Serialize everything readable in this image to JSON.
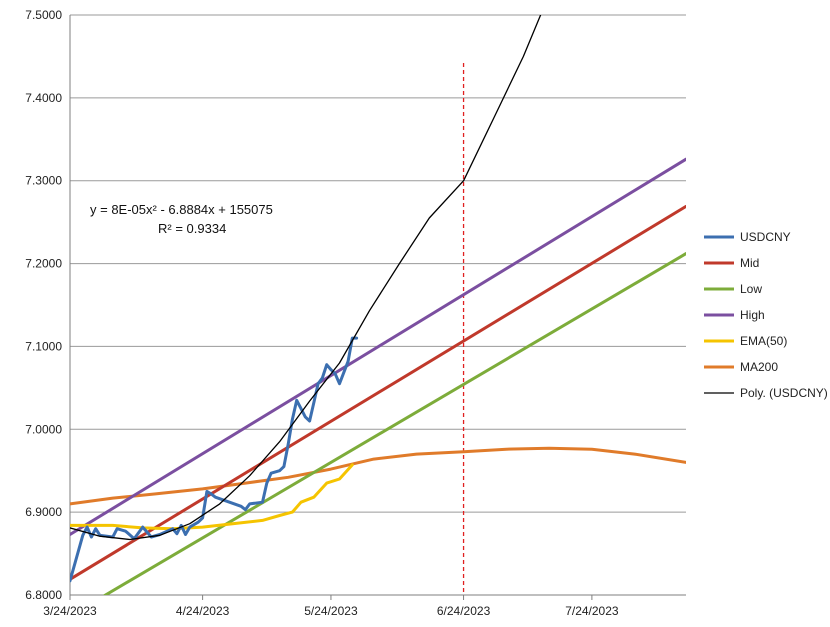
{
  "chart_data": {
    "type": "line",
    "title": "",
    "xlabel": "",
    "ylabel": "",
    "x_domain": [
      "2023-03-24",
      "2023-08-15"
    ],
    "ylim": [
      6.8,
      7.5
    ],
    "y_ticks": [
      6.8,
      6.9,
      7.0,
      7.1,
      7.2,
      7.3,
      7.4,
      7.5
    ],
    "y_tick_labels": [
      "6.8000",
      "6.9000",
      "7.0000",
      "7.1000",
      "7.2000",
      "7.3000",
      "7.4000",
      "7.5000"
    ],
    "x_ticks": [
      "2023-03-24",
      "2023-04-24",
      "2023-05-24",
      "2023-06-24",
      "2023-07-24"
    ],
    "x_tick_labels": [
      "3/24/2023",
      "4/24/2023",
      "5/24/2023",
      "6/24/2023",
      "7/24/2023"
    ],
    "grid": "horizontal",
    "legend_position": "right",
    "vline": {
      "x": "2023-06-24",
      "color": "#e02020",
      "style": "dashed"
    },
    "annotation": {
      "equation": "y = 8E-05x² - 6.8884x + 155075",
      "r_squared": "R² = 0.9334"
    },
    "series": [
      {
        "name": "USDCNY",
        "color": "#3c6fb0",
        "width": 3,
        "points": [
          [
            "2023-03-24",
            6.817
          ],
          [
            "2023-03-27",
            6.872
          ],
          [
            "2023-03-28",
            6.882
          ],
          [
            "2023-03-29",
            6.87
          ],
          [
            "2023-03-30",
            6.88
          ],
          [
            "2023-03-31",
            6.872
          ],
          [
            "2023-04-03",
            6.87
          ],
          [
            "2023-04-04",
            6.88
          ],
          [
            "2023-04-06",
            6.877
          ],
          [
            "2023-04-08",
            6.868
          ],
          [
            "2023-04-10",
            6.882
          ],
          [
            "2023-04-12",
            6.87
          ],
          [
            "2023-04-14",
            6.873
          ],
          [
            "2023-04-17",
            6.88
          ],
          [
            "2023-04-18",
            6.874
          ],
          [
            "2023-04-19",
            6.884
          ],
          [
            "2023-04-20",
            6.873
          ],
          [
            "2023-04-21",
            6.882
          ],
          [
            "2023-04-23",
            6.888
          ],
          [
            "2023-04-24",
            6.893
          ],
          [
            "2023-04-25",
            6.925
          ],
          [
            "2023-04-26",
            6.922
          ],
          [
            "2023-04-27",
            6.918
          ],
          [
            "2023-05-03",
            6.907
          ],
          [
            "2023-05-04",
            6.903
          ],
          [
            "2023-05-05",
            6.91
          ],
          [
            "2023-05-08",
            6.912
          ],
          [
            "2023-05-09",
            6.935
          ],
          [
            "2023-05-10",
            6.947
          ],
          [
            "2023-05-12",
            6.95
          ],
          [
            "2023-05-13",
            6.955
          ],
          [
            "2023-05-14",
            6.982
          ],
          [
            "2023-05-15",
            7.012
          ],
          [
            "2023-05-16",
            7.035
          ],
          [
            "2023-05-17",
            7.025
          ],
          [
            "2023-05-18",
            7.015
          ],
          [
            "2023-05-19",
            7.01
          ],
          [
            "2023-05-20",
            7.032
          ],
          [
            "2023-05-21",
            7.055
          ],
          [
            "2023-05-22",
            7.062
          ],
          [
            "2023-05-23",
            7.078
          ],
          [
            "2023-05-24",
            7.072
          ],
          [
            "2023-05-25",
            7.067
          ],
          [
            "2023-05-26",
            7.055
          ],
          [
            "2023-05-28",
            7.082
          ],
          [
            "2023-05-29",
            7.11
          ],
          [
            "2023-05-30",
            7.11
          ]
        ]
      },
      {
        "name": "Mid",
        "color": "#c0392b",
        "width": 3,
        "points": [
          [
            "2023-03-24",
            6.819
          ],
          [
            "2023-08-15",
            7.269
          ]
        ]
      },
      {
        "name": "Low",
        "color": "#7dac3a",
        "width": 3,
        "points": [
          [
            "2023-04-01",
            6.799
          ],
          [
            "2023-08-15",
            7.212
          ]
        ]
      },
      {
        "name": "High",
        "color": "#7b4fa0",
        "width": 3,
        "points": [
          [
            "2023-03-24",
            6.873
          ],
          [
            "2023-08-15",
            7.326
          ]
        ]
      },
      {
        "name": "EMA(50)",
        "color": "#f5c400",
        "width": 3,
        "points": [
          [
            "2023-03-24",
            6.884
          ],
          [
            "2023-04-03",
            6.884
          ],
          [
            "2023-04-10",
            6.881
          ],
          [
            "2023-04-17",
            6.88
          ],
          [
            "2023-04-24",
            6.882
          ],
          [
            "2023-05-01",
            6.886
          ],
          [
            "2023-05-08",
            6.89
          ],
          [
            "2023-05-12",
            6.896
          ],
          [
            "2023-05-15",
            6.9
          ],
          [
            "2023-05-17",
            6.912
          ],
          [
            "2023-05-20",
            6.918
          ],
          [
            "2023-05-23",
            6.935
          ],
          [
            "2023-05-26",
            6.94
          ],
          [
            "2023-05-29",
            6.957
          ]
        ]
      },
      {
        "name": "MA200",
        "color": "#e07b2a",
        "width": 3,
        "points": [
          [
            "2023-03-24",
            6.91
          ],
          [
            "2023-04-03",
            6.917
          ],
          [
            "2023-04-13",
            6.922
          ],
          [
            "2023-04-24",
            6.928
          ],
          [
            "2023-05-04",
            6.935
          ],
          [
            "2023-05-14",
            6.942
          ],
          [
            "2023-05-24",
            6.952
          ],
          [
            "2023-06-03",
            6.964
          ],
          [
            "2023-06-13",
            6.97
          ],
          [
            "2023-06-24",
            6.973
          ],
          [
            "2023-07-04",
            6.976
          ],
          [
            "2023-07-14",
            6.977
          ],
          [
            "2023-07-24",
            6.976
          ],
          [
            "2023-08-03",
            6.97
          ],
          [
            "2023-08-15",
            6.96
          ]
        ]
      },
      {
        "name": "Poly. (USDCNY)",
        "color": "#000000",
        "width": 1.3,
        "points": [
          [
            "2023-03-24",
            6.881
          ],
          [
            "2023-03-31",
            6.871
          ],
          [
            "2023-04-07",
            6.867
          ],
          [
            "2023-04-14",
            6.872
          ],
          [
            "2023-04-21",
            6.886
          ],
          [
            "2023-04-28",
            6.91
          ],
          [
            "2023-05-05",
            6.944
          ],
          [
            "2023-05-12",
            6.985
          ],
          [
            "2023-05-19",
            7.034
          ],
          [
            "2023-05-26",
            7.08
          ],
          [
            "2023-06-02",
            7.143
          ],
          [
            "2023-06-09",
            7.2
          ],
          [
            "2023-06-16",
            7.255
          ],
          [
            "2023-06-24",
            7.3
          ],
          [
            "2023-07-01",
            7.375
          ],
          [
            "2023-07-08",
            7.45
          ],
          [
            "2023-07-12",
            7.5
          ]
        ]
      }
    ]
  }
}
